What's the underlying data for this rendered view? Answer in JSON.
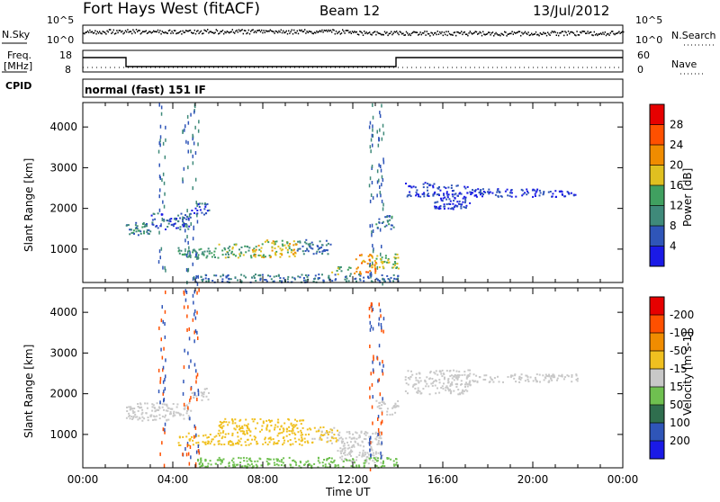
{
  "header": {
    "station": "Fort Hays West (fitACF)",
    "beam": "Beam 12",
    "date": "13/Jul/2012"
  },
  "strip_labels": {
    "nsky": "N.Sky",
    "nsky_ticks": [
      "10^5",
      "10^0"
    ],
    "nsearch": "N.Search",
    "freq_top": "Freq.",
    "freq_unit": "[MHz]",
    "freq_ticks": [
      "18",
      "8"
    ],
    "nave": "Nave",
    "nave_ticks": [
      "60",
      "0"
    ],
    "cpid": "CPID",
    "mode_text": "normal (fast) 151 IF"
  },
  "chart_data": [
    {
      "type": "heatmap",
      "name": "power",
      "xlabel": "Time UT",
      "ylabel": "Slant Range [km]",
      "xlim": [
        0,
        24
      ],
      "ylim": [
        180,
        4600
      ],
      "x_ticks": [
        "00:00",
        "04:00",
        "08:00",
        "12:00",
        "16:00",
        "20:00",
        "00:00"
      ],
      "y_ticks": [
        1000,
        2000,
        3000,
        4000
      ],
      "colorbar": {
        "label": "Power [dB]",
        "ticks": [
          4,
          8,
          12,
          16,
          20,
          24,
          28
        ],
        "colors": [
          "#1a1ae6",
          "#2f55b8",
          "#3f8a7a",
          "#40a060",
          "#e0c020",
          "#f08c00",
          "#ff5000",
          "#e60000"
        ]
      },
      "patches": [
        {
          "t0": 1.9,
          "t1": 3.0,
          "r0": 1350,
          "r1": 1700,
          "value": 10
        },
        {
          "t0": 3.0,
          "t1": 4.8,
          "r0": 1500,
          "r1": 1900,
          "value": 6
        },
        {
          "t0": 4.8,
          "t1": 5.6,
          "r0": 1850,
          "r1": 2150,
          "value": 5
        },
        {
          "t0": 4.2,
          "t1": 6.0,
          "r0": 800,
          "r1": 1050,
          "value": 12
        },
        {
          "t0": 6.0,
          "t1": 7.5,
          "r0": 800,
          "r1": 1150,
          "value": 14
        },
        {
          "t0": 7.5,
          "t1": 9.5,
          "r0": 800,
          "r1": 1250,
          "value": 18
        },
        {
          "t0": 9.5,
          "t1": 11.0,
          "r0": 900,
          "r1": 1250,
          "value": 8
        },
        {
          "t0": 11.0,
          "t1": 12.0,
          "r0": 400,
          "r1": 600,
          "value": 14
        },
        {
          "t0": 12.0,
          "t1": 13.0,
          "r0": 400,
          "r1": 900,
          "value": 22
        },
        {
          "t0": 13.0,
          "t1": 14.0,
          "r0": 500,
          "r1": 900,
          "value": 16
        },
        {
          "t0": 13.0,
          "t1": 13.8,
          "r0": 1500,
          "r1": 1850,
          "value": 10
        },
        {
          "t0": 14.3,
          "t1": 15.6,
          "r0": 2300,
          "r1": 2650,
          "value": 4
        },
        {
          "t0": 15.6,
          "t1": 17.2,
          "r0": 2000,
          "r1": 2600,
          "value": 4
        },
        {
          "t0": 17.2,
          "t1": 22.0,
          "r0": 2300,
          "r1": 2500,
          "value": 4
        },
        {
          "t0": 5.0,
          "t1": 14.0,
          "r0": 200,
          "r1": 400,
          "value": 8
        }
      ]
    },
    {
      "type": "heatmap",
      "name": "velocity",
      "xlabel": "Time UT",
      "ylabel": "Slant Range [km]",
      "xlim": [
        0,
        24
      ],
      "ylim": [
        180,
        4600
      ],
      "x_ticks": [
        "00:00",
        "04:00",
        "08:00",
        "12:00",
        "16:00",
        "20:00",
        "00:00"
      ],
      "y_ticks": [
        1000,
        2000,
        3000,
        4000
      ],
      "colorbar": {
        "label": "Velocity [m s-1]",
        "ticks": [
          200,
          100,
          50,
          15,
          -15,
          -50,
          -100,
          -200
        ],
        "colors": [
          "#1a1ae6",
          "#2f55b8",
          "#2f6e4e",
          "#6fc050",
          "#c8c8c8",
          "#f0c020",
          "#f08c00",
          "#ff5000",
          "#e60000"
        ]
      },
      "patches": [
        {
          "t0": 1.9,
          "t1": 4.8,
          "r0": 1350,
          "r1": 1800,
          "value": 0
        },
        {
          "t0": 4.8,
          "t1": 5.6,
          "r0": 1850,
          "r1": 2150,
          "value": 0
        },
        {
          "t0": 4.2,
          "t1": 6.0,
          "r0": 750,
          "r1": 1050,
          "value": -30
        },
        {
          "t0": 6.0,
          "t1": 9.8,
          "r0": 750,
          "r1": 1400,
          "value": -35
        },
        {
          "t0": 9.8,
          "t1": 11.3,
          "r0": 800,
          "r1": 1200,
          "value": -20
        },
        {
          "t0": 11.3,
          "t1": 13.3,
          "r0": 300,
          "r1": 1100,
          "value": 0
        },
        {
          "t0": 13.0,
          "t1": 14.0,
          "r0": 1500,
          "r1": 1850,
          "value": 0
        },
        {
          "t0": 14.3,
          "t1": 17.2,
          "r0": 2000,
          "r1": 2600,
          "value": 0
        },
        {
          "t0": 17.2,
          "t1": 22.0,
          "r0": 2300,
          "r1": 2500,
          "value": 0
        },
        {
          "t0": 5.0,
          "t1": 14.0,
          "r0": 200,
          "r1": 450,
          "value": 30
        }
      ]
    }
  ]
}
